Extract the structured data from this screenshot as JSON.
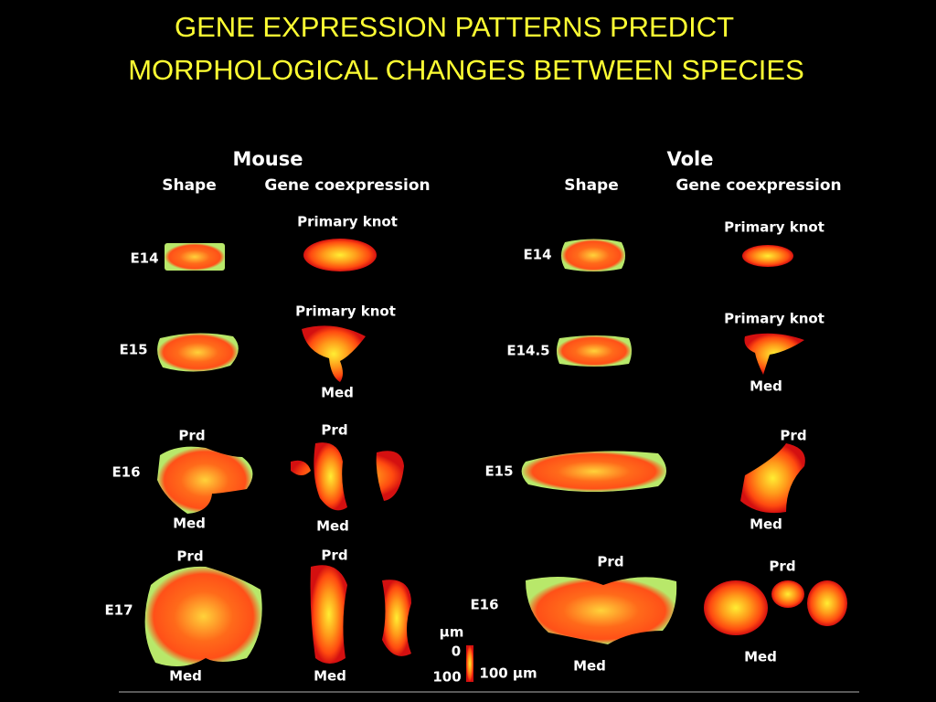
{
  "title": [
    "GENE EXPRESSION PATTERNS PREDICT",
    "MORPHOLOGICAL CHANGES BETWEEN SPECIES"
  ],
  "figure": {
    "panels": [
      {
        "species": "Mouse",
        "columns": [
          "Shape",
          "Gene coexpression"
        ],
        "rows": [
          {
            "stage": "E14",
            "shape_labels": [],
            "coexpression_labels": [
              "Primary knot"
            ]
          },
          {
            "stage": "E15",
            "shape_labels": [],
            "coexpression_labels": [
              "Primary knot",
              "Med"
            ]
          },
          {
            "stage": "E16",
            "shape_labels": [
              "Prd",
              "Med"
            ],
            "coexpression_labels": [
              "Prd",
              "Med"
            ]
          },
          {
            "stage": "E17",
            "shape_labels": [
              "Prd",
              "Med"
            ],
            "coexpression_labels": [
              "Prd",
              "Med"
            ]
          }
        ]
      },
      {
        "species": "Vole",
        "columns": [
          "Shape",
          "Gene coexpression"
        ],
        "rows": [
          {
            "stage": "E14",
            "shape_labels": [],
            "coexpression_labels": [
              "Primary knot"
            ]
          },
          {
            "stage": "E14.5",
            "shape_labels": [],
            "coexpression_labels": [
              "Primary knot",
              "Med"
            ]
          },
          {
            "stage": "E15",
            "shape_labels": [],
            "coexpression_labels": [
              "Prd",
              "Med"
            ]
          },
          {
            "stage": "E16",
            "shape_labels": [
              "Prd",
              "Med"
            ],
            "coexpression_labels": [
              "Prd",
              "Med"
            ]
          }
        ]
      }
    ],
    "scale": {
      "unit": "μm",
      "min": "0",
      "max": "100",
      "bar": "100 μm"
    }
  }
}
